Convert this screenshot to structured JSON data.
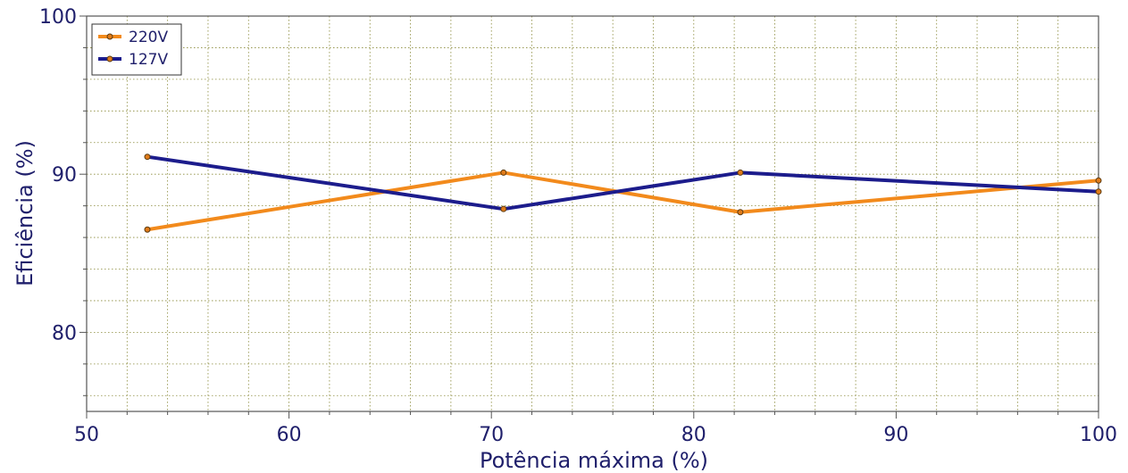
{
  "chart_data": {
    "type": "line",
    "xlabel": "Potência máxima (%)",
    "ylabel": "Eficiência (%)",
    "xlim": [
      50,
      100
    ],
    "ylim": [
      75,
      100
    ],
    "x_ticks": [
      "50",
      "60",
      "70",
      "80",
      "90",
      "100"
    ],
    "y_ticks": [
      "80",
      "90",
      "100"
    ],
    "grid": true,
    "legend_position": "top-left",
    "series": [
      {
        "name": "220V",
        "color": "#f28a1c",
        "x": [
          53.0,
          70.6,
          82.3,
          100.0
        ],
        "y": [
          86.5,
          90.1,
          87.6,
          89.6
        ]
      },
      {
        "name": "127V",
        "color": "#1c1c8c",
        "x": [
          53.0,
          70.6,
          82.3,
          100.0
        ],
        "y": [
          91.1,
          87.8,
          90.1,
          88.9
        ]
      }
    ]
  }
}
